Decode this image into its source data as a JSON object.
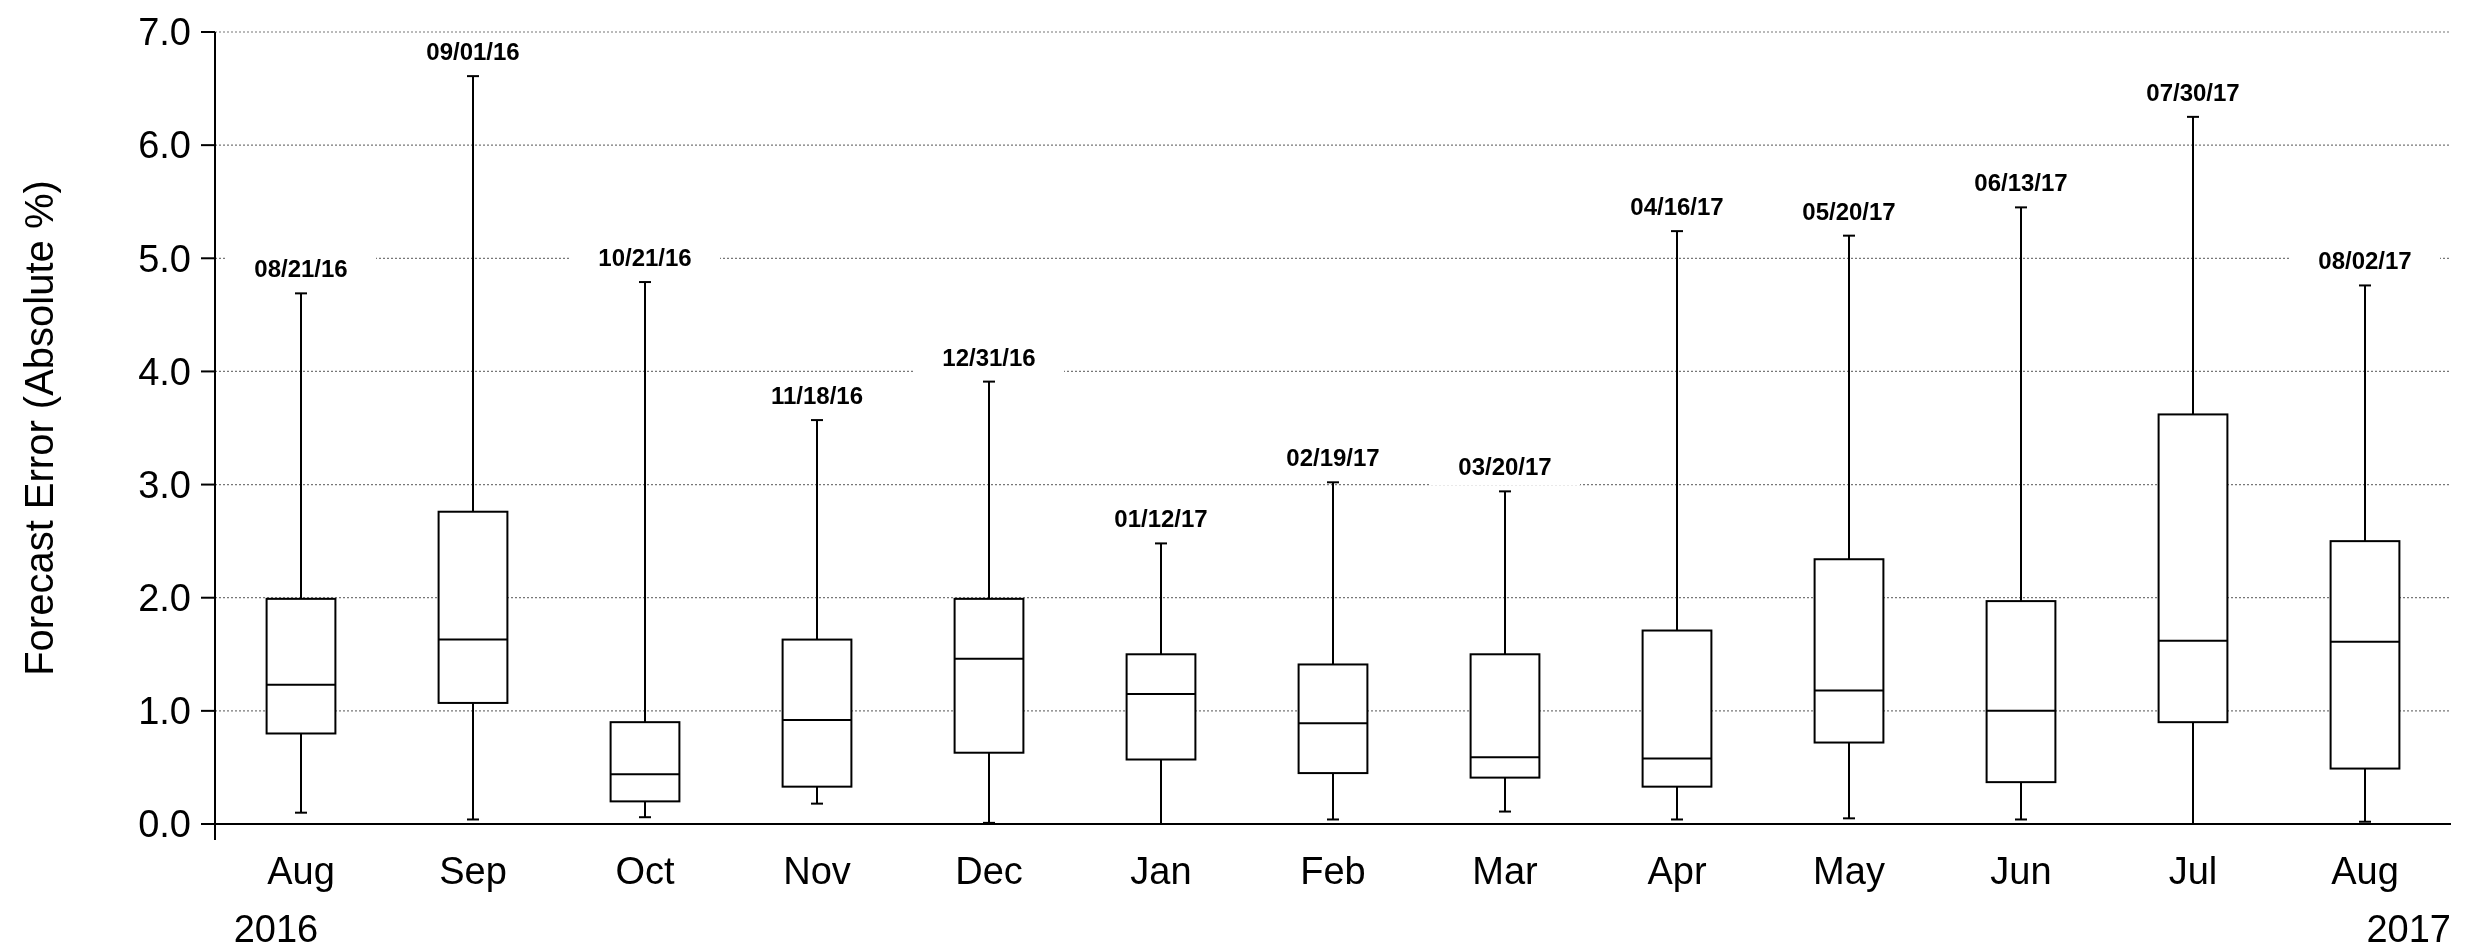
{
  "chart_data": {
    "type": "box",
    "ylabel": "Forecast Error  (Absolute %)",
    "categories": [
      "Aug",
      "Sep",
      "Oct",
      "Nov",
      "Dec",
      "Jan",
      "Feb",
      "Mar",
      "Apr",
      "May",
      "Jun",
      "Jul",
      "Aug"
    ],
    "boxes": [
      {
        "low": 0.1,
        "q1": 0.8,
        "median": 1.23,
        "q3": 1.99,
        "high": 4.69
      },
      {
        "low": 0.04,
        "q1": 1.07,
        "median": 1.63,
        "q3": 2.76,
        "high": 6.61
      },
      {
        "low": 0.06,
        "q1": 0.2,
        "median": 0.44,
        "q3": 0.9,
        "high": 4.79
      },
      {
        "low": 0.18,
        "q1": 0.33,
        "median": 0.92,
        "q3": 1.63,
        "high": 3.57
      },
      {
        "low": 0.01,
        "q1": 0.63,
        "median": 1.46,
        "q3": 1.99,
        "high": 3.91
      },
      {
        "low": 0.0,
        "q1": 0.57,
        "median": 1.15,
        "q3": 1.5,
        "high": 2.48
      },
      {
        "low": 0.04,
        "q1": 0.45,
        "median": 0.89,
        "q3": 1.41,
        "high": 3.02
      },
      {
        "low": 0.11,
        "q1": 0.41,
        "median": 0.59,
        "q3": 1.5,
        "high": 2.94
      },
      {
        "low": 0.04,
        "q1": 0.33,
        "median": 0.58,
        "q3": 1.71,
        "high": 5.24
      },
      {
        "low": 0.05,
        "q1": 0.72,
        "median": 1.18,
        "q3": 2.34,
        "high": 5.2
      },
      {
        "low": 0.04,
        "q1": 0.37,
        "median": 1.0,
        "q3": 1.97,
        "high": 5.45
      },
      {
        "low": 0.0,
        "q1": 0.9,
        "median": 1.62,
        "q3": 3.62,
        "high": 6.25
      },
      {
        "low": 0.02,
        "q1": 0.49,
        "median": 1.61,
        "q3": 2.5,
        "high": 4.76
      }
    ],
    "ylim": [
      0,
      7
    ],
    "yticks": [
      {
        "value": 0,
        "label": "0.0"
      },
      {
        "value": 1,
        "label": "1.0"
      },
      {
        "value": 2,
        "label": "2.0"
      },
      {
        "value": 3,
        "label": "3.0"
      },
      {
        "value": 4,
        "label": "4.0"
      },
      {
        "value": 5,
        "label": "5.0"
      },
      {
        "value": 6,
        "label": "6.0"
      },
      {
        "value": 7,
        "label": "7.0"
      }
    ],
    "grid": "y",
    "annotations": [
      "08/21/16",
      "09/01/16",
      "10/21/16",
      "11/18/16",
      "12/31/16",
      "01/12/17",
      "02/19/17",
      "03/20/17",
      "04/16/17",
      "05/20/17",
      "06/13/17",
      "07/30/17",
      "08/02/17",
      "2016",
      "2017"
    ]
  }
}
